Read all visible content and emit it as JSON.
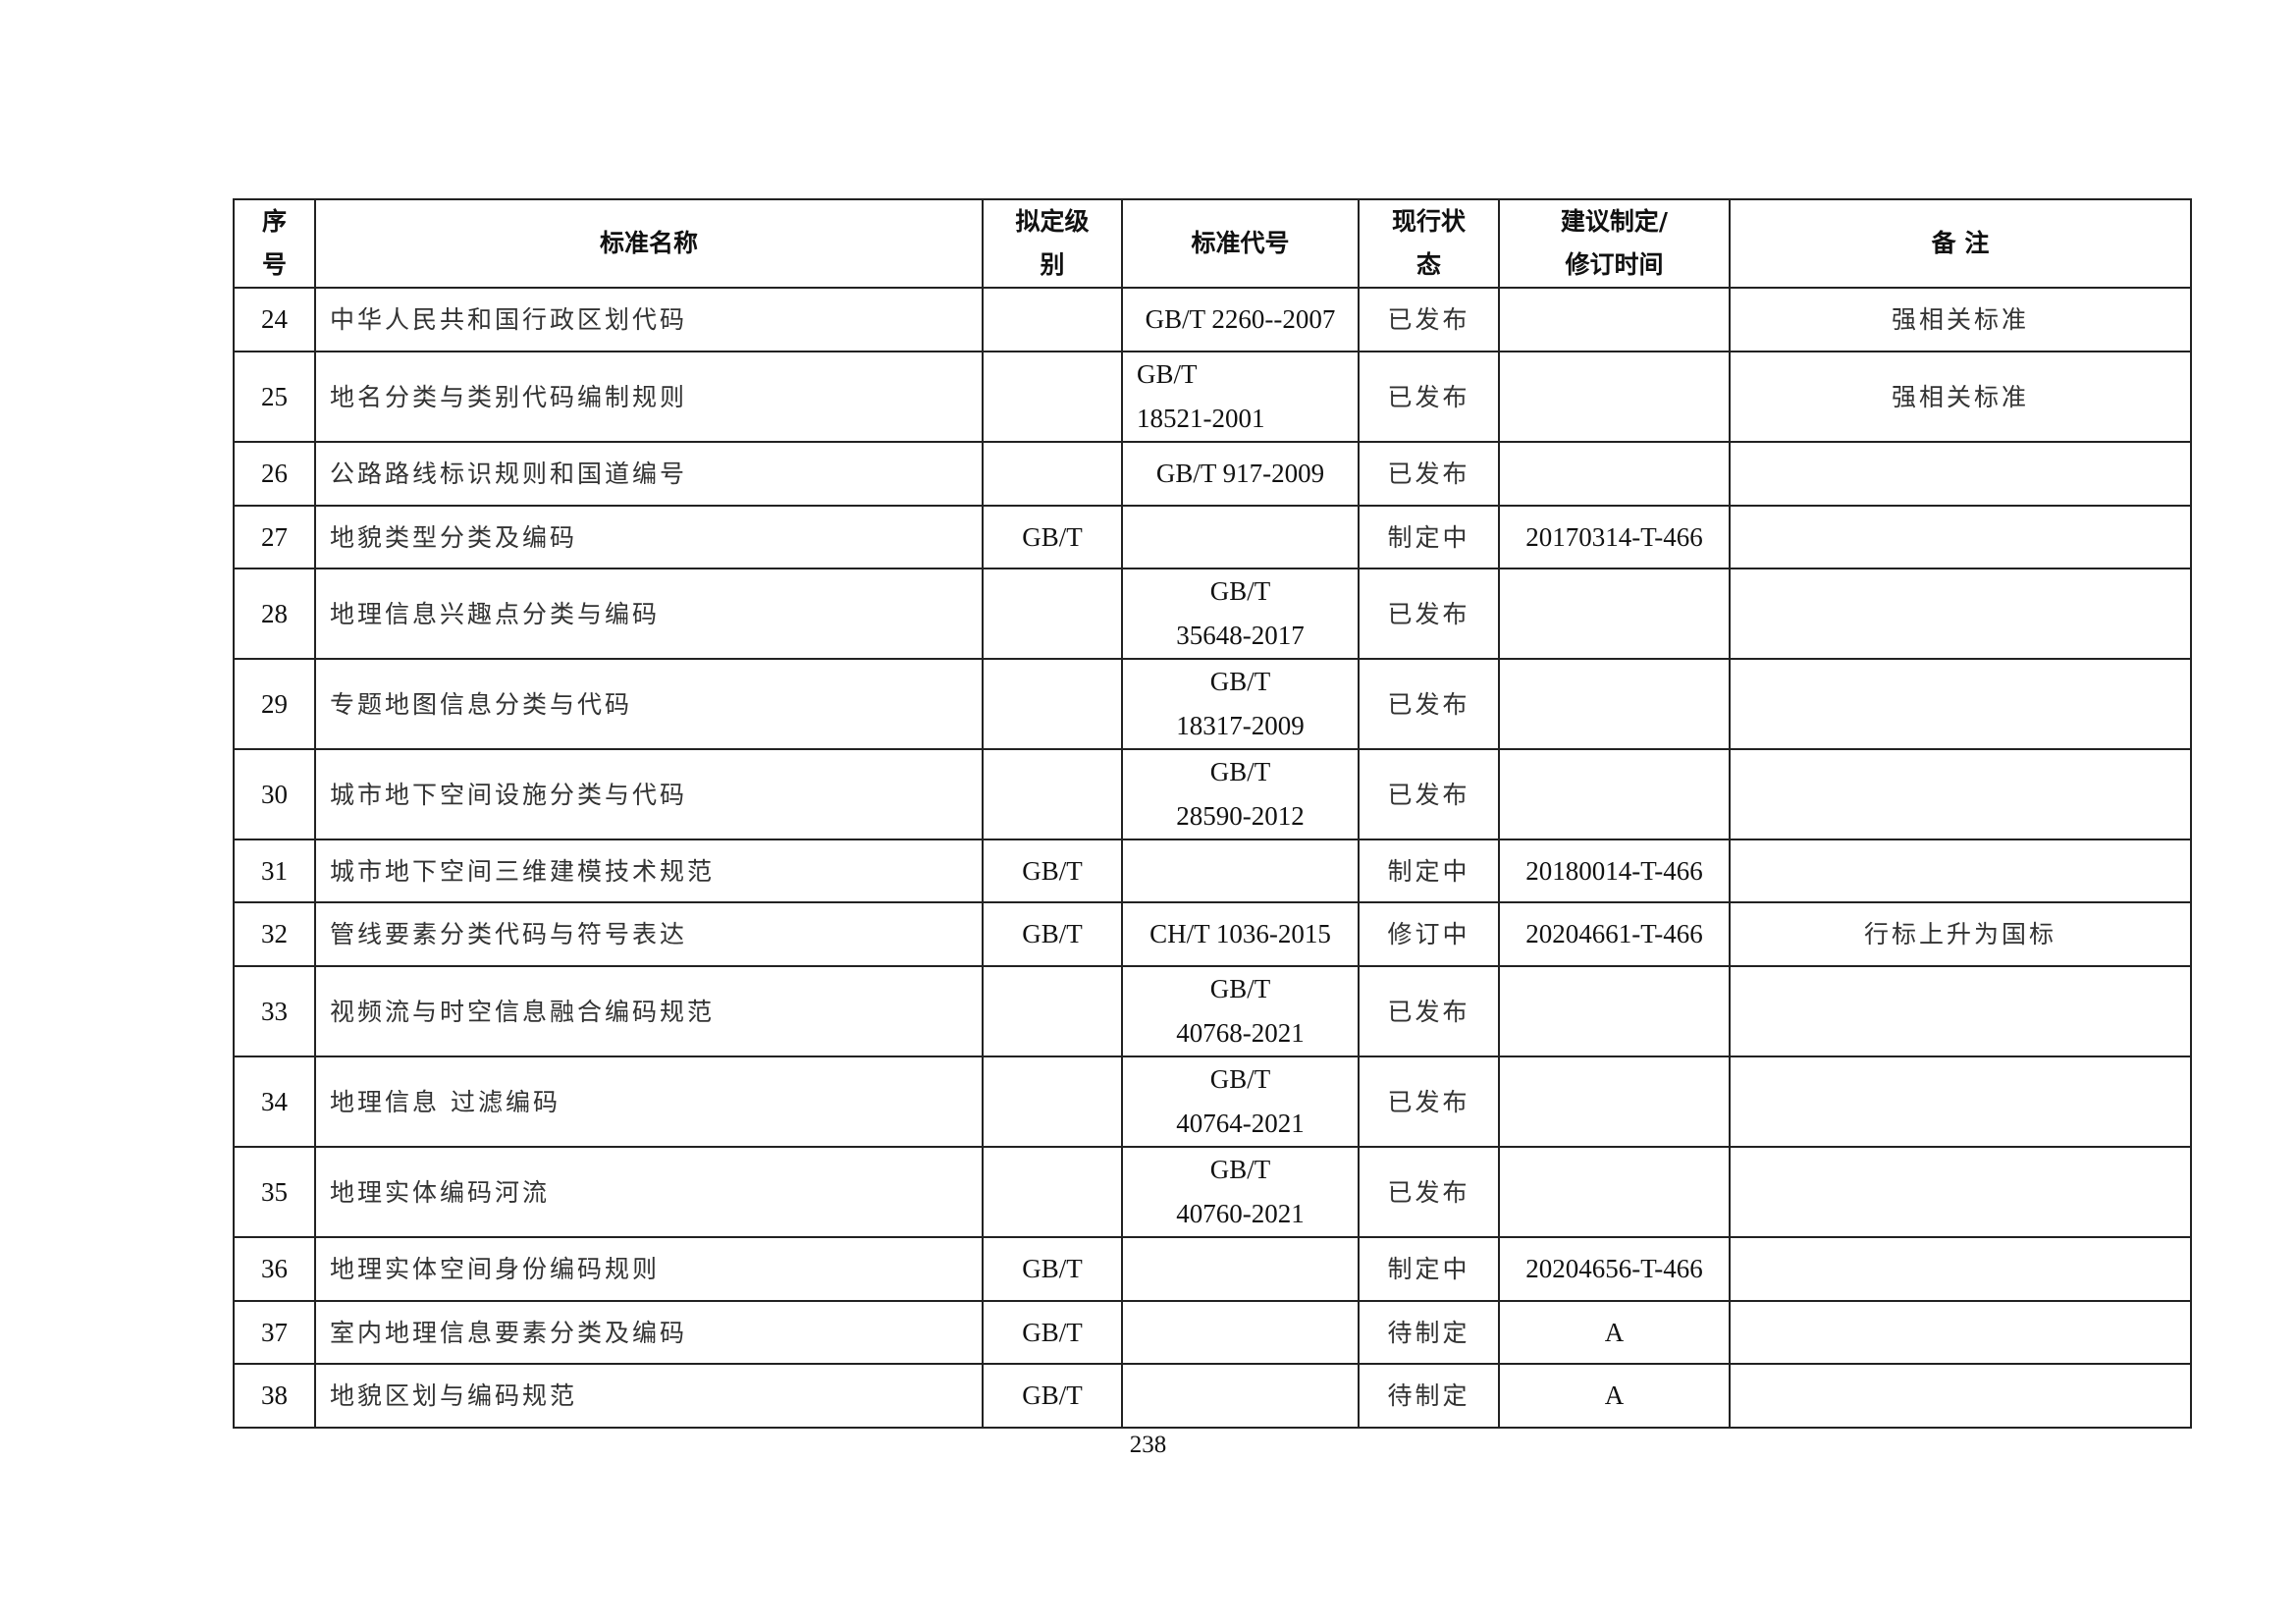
{
  "table": {
    "headers": {
      "no": [
        "序",
        "号"
      ],
      "name": "标准名称",
      "level": [
        "拟定级",
        "别"
      ],
      "code": "标准代号",
      "status": [
        "现行状",
        "态"
      ],
      "time": [
        "建议制定/",
        "修订时间"
      ],
      "remark": "备 注"
    },
    "rows": [
      {
        "no": "24",
        "name": "中华人民共和国行政区划代码",
        "level": "",
        "code": [
          "GB/T 2260--2007"
        ],
        "status": "已发布",
        "time": "",
        "remark": "强相关标准"
      },
      {
        "no": "25",
        "name": "地名分类与类别代码编制规则",
        "level": "",
        "code": [
          "GB/T",
          "18521-2001"
        ],
        "status": "已发布",
        "time": "",
        "remark": "强相关标准"
      },
      {
        "no": "26",
        "name": "公路路线标识规则和国道编号",
        "level": "",
        "code": [
          "GB/T 917-2009"
        ],
        "status": "已发布",
        "time": "",
        "remark": ""
      },
      {
        "no": "27",
        "name": "地貌类型分类及编码",
        "level": "GB/T",
        "code": [],
        "status": "制定中",
        "time": "20170314-T-466",
        "remark": ""
      },
      {
        "no": "28",
        "name": "地理信息兴趣点分类与编码",
        "level": "",
        "code": [
          "GB/T",
          "35648-2017"
        ],
        "status": "已发布",
        "time": "",
        "remark": ""
      },
      {
        "no": "29",
        "name": "专题地图信息分类与代码",
        "level": "",
        "code": [
          "GB/T",
          "18317-2009"
        ],
        "status": "已发布",
        "time": "",
        "remark": ""
      },
      {
        "no": "30",
        "name": "城市地下空间设施分类与代码",
        "level": "",
        "code": [
          "GB/T",
          "28590-2012"
        ],
        "status": "已发布",
        "time": "",
        "remark": ""
      },
      {
        "no": "31",
        "name": "城市地下空间三维建模技术规范",
        "level": "GB/T",
        "code": [],
        "status": "制定中",
        "time": "20180014-T-466",
        "remark": ""
      },
      {
        "no": "32",
        "name": "管线要素分类代码与符号表达",
        "level": "GB/T",
        "code": [
          "CH/T 1036-2015"
        ],
        "status": "修订中",
        "time": "20204661-T-466",
        "remark": "行标上升为国标"
      },
      {
        "no": "33",
        "name": "视频流与时空信息融合编码规范",
        "level": "",
        "code": [
          "GB/T",
          "40768-2021"
        ],
        "status": "已发布",
        "time": "",
        "remark": ""
      },
      {
        "no": "34",
        "name": "地理信息 过滤编码",
        "level": "",
        "code": [
          "GB/T",
          "40764-2021"
        ],
        "status": "已发布",
        "time": "",
        "remark": ""
      },
      {
        "no": "35",
        "name": "地理实体编码河流",
        "level": "",
        "code": [
          "GB/T",
          "40760-2021"
        ],
        "status": "已发布",
        "time": "",
        "remark": ""
      },
      {
        "no": "36",
        "name": "地理实体空间身份编码规则",
        "level": "GB/T",
        "code": [],
        "status": "制定中",
        "time": "20204656-T-466",
        "remark": ""
      },
      {
        "no": "37",
        "name": "室内地理信息要素分类及编码",
        "level": "GB/T",
        "code": [],
        "status": "待制定",
        "time": "A",
        "remark": ""
      },
      {
        "no": "38",
        "name": "地貌区划与编码规范",
        "level": "GB/T",
        "code": [],
        "status": "待制定",
        "time": "A",
        "remark": ""
      }
    ]
  },
  "page_number": "238"
}
